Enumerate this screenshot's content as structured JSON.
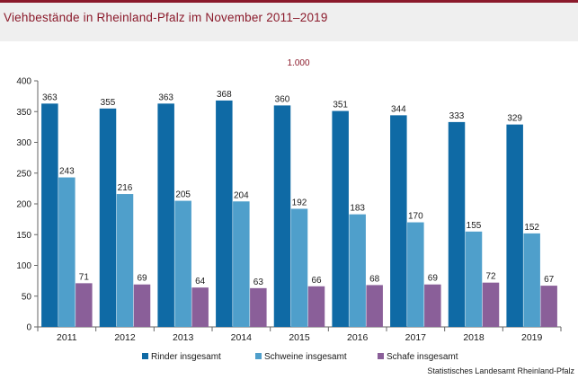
{
  "title": "Viehbestände in Rheinland-Pfalz im November 2011–2019",
  "source": "Statistisches Landesamt Rheinland-Pfalz",
  "chart_data": {
    "type": "bar",
    "unit_label": "1.000",
    "categories": [
      "2011",
      "2012",
      "2013",
      "2014",
      "2015",
      "2016",
      "2017",
      "2018",
      "2019"
    ],
    "series": [
      {
        "name": "Rinder insgesamt",
        "color": "#0f6aa5",
        "values": [
          363,
          355,
          363,
          368,
          360,
          351,
          344,
          333,
          329
        ]
      },
      {
        "name": "Schweine insgesamt",
        "color": "#4f9fcb",
        "values": [
          243,
          216,
          205,
          204,
          192,
          183,
          170,
          155,
          152
        ]
      },
      {
        "name": "Schafe insgesamt",
        "color": "#8a5f99",
        "values": [
          71,
          69,
          64,
          63,
          66,
          68,
          69,
          72,
          67
        ]
      }
    ],
    "ylim": [
      0,
      400
    ],
    "yticks": [
      0,
      50,
      100,
      150,
      200,
      250,
      300,
      350,
      400
    ],
    "legend_position": "bottom",
    "grid": false
  }
}
